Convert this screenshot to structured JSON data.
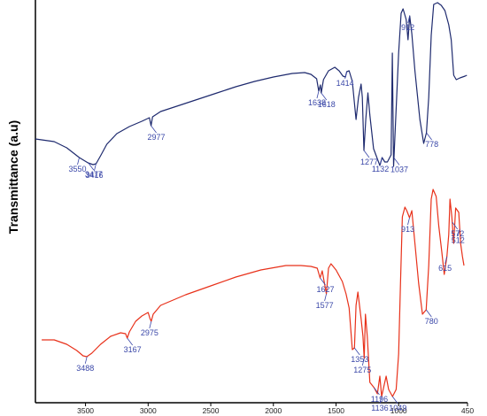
{
  "chart_data": {
    "type": "line",
    "title": "",
    "xlabel": "",
    "ylabel": "Transmittance (a.u)",
    "x_reversed": true,
    "xlim": [
      3900,
      450
    ],
    "x_ticks": [
      3500,
      3000,
      2500,
      2000,
      1500,
      1000,
      450
    ],
    "x_tick_labels": [
      "3500",
      "3000",
      "2500",
      "2000",
      "1500",
      "1000",
      "450"
    ],
    "y_ticks_shown": false,
    "grid": false,
    "legend": "none",
    "series": [
      {
        "color": "#1e2a6e",
        "label_color": "#3a47a8",
        "points": [
          [
            3900,
            157
          ],
          [
            3750,
            160
          ],
          [
            3650,
            167
          ],
          [
            3550,
            178
          ],
          [
            3480,
            184
          ],
          [
            3440,
            186
          ],
          [
            3416,
            185
          ],
          [
            3380,
            176
          ],
          [
            3330,
            163
          ],
          [
            3250,
            151
          ],
          [
            3150,
            143
          ],
          [
            3050,
            137
          ],
          [
            2990,
            133
          ],
          [
            2977,
            142
          ],
          [
            2965,
            132
          ],
          [
            2900,
            126
          ],
          [
            2750,
            119
          ],
          [
            2600,
            112
          ],
          [
            2450,
            105
          ],
          [
            2300,
            98
          ],
          [
            2150,
            92
          ],
          [
            2000,
            87
          ],
          [
            1850,
            83
          ],
          [
            1750,
            82
          ],
          [
            1700,
            84
          ],
          [
            1655,
            89
          ],
          [
            1638,
            103
          ],
          [
            1625,
            96
          ],
          [
            1618,
            105
          ],
          [
            1600,
            90
          ],
          [
            1560,
            80
          ],
          [
            1510,
            76
          ],
          [
            1475,
            80
          ],
          [
            1445,
            86
          ],
          [
            1425,
            87
          ],
          [
            1414,
            81
          ],
          [
            1395,
            80
          ],
          [
            1370,
            92
          ],
          [
            1340,
            135
          ],
          [
            1320,
            110
          ],
          [
            1300,
            95
          ],
          [
            1290,
            110
          ],
          [
            1277,
            170
          ],
          [
            1262,
            135
          ],
          [
            1245,
            105
          ],
          [
            1230,
            130
          ],
          [
            1200,
            168
          ],
          [
            1150,
            187
          ],
          [
            1132,
            178
          ],
          [
            1110,
            183
          ],
          [
            1090,
            183
          ],
          [
            1060,
            175
          ],
          [
            1050,
            60
          ],
          [
            1040,
            188
          ],
          [
            1000,
            60
          ],
          [
            980,
            15
          ],
          [
            965,
            10
          ],
          [
            940,
            22
          ],
          [
            925,
            45
          ],
          [
            912,
            18
          ],
          [
            895,
            38
          ],
          [
            870,
            80
          ],
          [
            830,
            135
          ],
          [
            800,
            162
          ],
          [
            778,
            150
          ],
          [
            760,
            110
          ],
          [
            740,
            40
          ],
          [
            720,
            5
          ],
          [
            690,
            3
          ],
          [
            660,
            6
          ],
          [
            630,
            12
          ],
          [
            600,
            28
          ],
          [
            580,
            45
          ],
          [
            560,
            85
          ],
          [
            540,
            90
          ],
          [
            510,
            88
          ],
          [
            470,
            86
          ],
          [
            455,
            85
          ]
        ],
        "peaks": [
          {
            "x": 3550,
            "label": "3550"
          },
          {
            "x": 3477,
            "label": "3477"
          },
          {
            "x": 3416,
            "label": "3416"
          },
          {
            "x": 2977,
            "label": "2977"
          },
          {
            "x": 1638,
            "label": "1638"
          },
          {
            "x": 1618,
            "label": "1618"
          },
          {
            "x": 1414,
            "label": "1414"
          },
          {
            "x": 1277,
            "label": "1277"
          },
          {
            "x": 1132,
            "label": "1132"
          },
          {
            "x": 1037,
            "label": "1037"
          },
          {
            "x": 912,
            "label": "912"
          },
          {
            "x": 778,
            "label": "778"
          }
        ]
      },
      {
        "color": "#e8311a",
        "label_color": "#3a47a8",
        "points": [
          [
            3850,
            384
          ],
          [
            3750,
            384
          ],
          [
            3650,
            389
          ],
          [
            3570,
            396
          ],
          [
            3520,
            402
          ],
          [
            3490,
            403
          ],
          [
            3450,
            399
          ],
          [
            3380,
            389
          ],
          [
            3300,
            380
          ],
          [
            3220,
            376
          ],
          [
            3180,
            377
          ],
          [
            3167,
            382
          ],
          [
            3150,
            375
          ],
          [
            3100,
            363
          ],
          [
            3050,
            357
          ],
          [
            3000,
            353
          ],
          [
            2985,
            360
          ],
          [
            2975,
            363
          ],
          [
            2960,
            355
          ],
          [
            2900,
            345
          ],
          [
            2700,
            333
          ],
          [
            2500,
            323
          ],
          [
            2300,
            313
          ],
          [
            2100,
            305
          ],
          [
            1900,
            300
          ],
          [
            1780,
            300
          ],
          [
            1700,
            301
          ],
          [
            1650,
            303
          ],
          [
            1627,
            314
          ],
          [
            1610,
            306
          ],
          [
            1577,
            332
          ],
          [
            1560,
            303
          ],
          [
            1540,
            298
          ],
          [
            1500,
            305
          ],
          [
            1450,
            318
          ],
          [
            1420,
            332
          ],
          [
            1395,
            348
          ],
          [
            1370,
            395
          ],
          [
            1353,
            393
          ],
          [
            1340,
            345
          ],
          [
            1325,
            330
          ],
          [
            1300,
            360
          ],
          [
            1285,
            380
          ],
          [
            1275,
            405
          ],
          [
            1265,
            355
          ],
          [
            1250,
            380
          ],
          [
            1230,
            432
          ],
          [
            1196,
            438
          ],
          [
            1170,
            445
          ],
          [
            1150,
            425
          ],
          [
            1136,
            448
          ],
          [
            1120,
            438
          ],
          [
            1100,
            425
          ],
          [
            1080,
            440
          ],
          [
            1049,
            448
          ],
          [
            1020,
            440
          ],
          [
            1000,
            400
          ],
          [
            985,
            320
          ],
          [
            970,
            245
          ],
          [
            950,
            234
          ],
          [
            935,
            238
          ],
          [
            913,
            246
          ],
          [
            895,
            238
          ],
          [
            870,
            275
          ],
          [
            840,
            320
          ],
          [
            810,
            355
          ],
          [
            780,
            350
          ],
          [
            760,
            300
          ],
          [
            740,
            225
          ],
          [
            725,
            214
          ],
          [
            700,
            222
          ],
          [
            680,
            255
          ],
          [
            655,
            285
          ],
          [
            636,
            310
          ],
          [
            615,
            290
          ],
          [
            600,
            265
          ],
          [
            590,
            225
          ],
          [
            575,
            245
          ],
          [
            560,
            275
          ],
          [
            545,
            235
          ],
          [
            520,
            240
          ],
          [
            505,
            275
          ],
          [
            490,
            290
          ],
          [
            478,
            300
          ]
        ],
        "peaks": [
          {
            "x": 3488,
            "label": "3488"
          },
          {
            "x": 3167,
            "label": "3167"
          },
          {
            "x": 2975,
            "label": "2975"
          },
          {
            "x": 1627,
            "label": "1627"
          },
          {
            "x": 1577,
            "label": "1577"
          },
          {
            "x": 1353,
            "label": "1353"
          },
          {
            "x": 1275,
            "label": "1275"
          },
          {
            "x": 1196,
            "label": "1196"
          },
          {
            "x": 1136,
            "label": "1136"
          },
          {
            "x": 1049,
            "label": "1049"
          },
          {
            "x": 913,
            "label": "913"
          },
          {
            "x": 780,
            "label": "780"
          },
          {
            "x": 615,
            "label": "615"
          },
          {
            "x": 572,
            "label": "572"
          },
          {
            "x": 512,
            "label": "512"
          }
        ]
      }
    ]
  }
}
